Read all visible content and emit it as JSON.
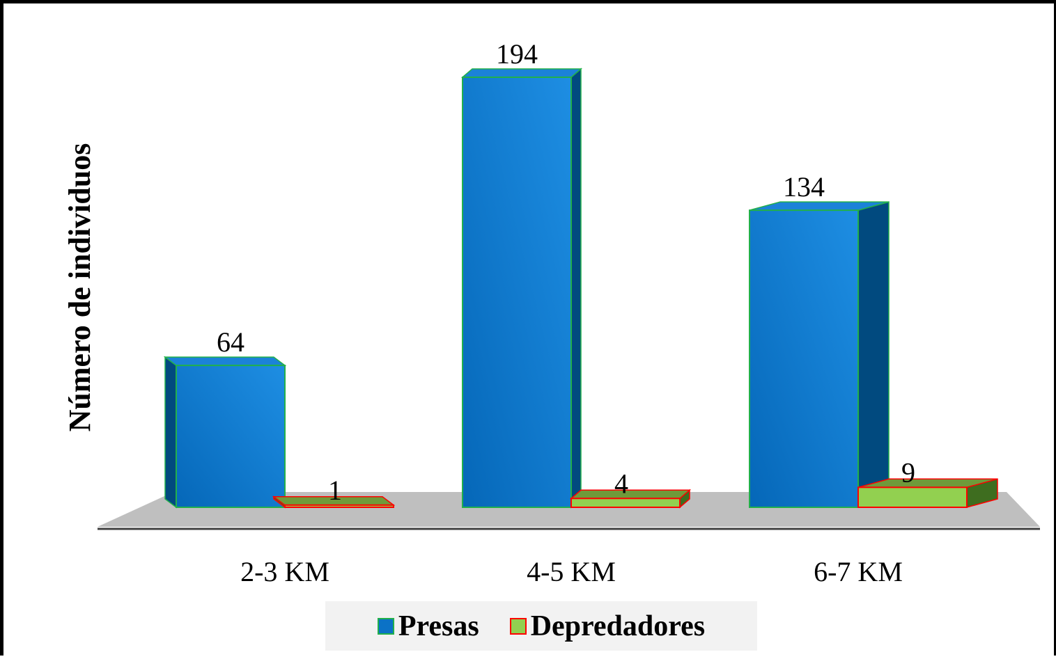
{
  "chart_data": {
    "type": "bar",
    "title": "",
    "xlabel": "",
    "ylabel": "Número de individuos",
    "categories": [
      "2-3 KM",
      "4-5 KM",
      "6-7 KM"
    ],
    "series": [
      {
        "name": "Presas",
        "values": [
          64,
          194,
          134
        ],
        "color": "#0b72c6",
        "edge": "#22b04b"
      },
      {
        "name": "Depredadores",
        "values": [
          1,
          4,
          9
        ],
        "color": "#92d050",
        "edge": "#ff0000"
      }
    ],
    "data_labels": [
      "64",
      "1",
      "194",
      "4",
      "134",
      "9"
    ],
    "ylim": [
      0,
      194
    ],
    "grid": false,
    "legend_position": "bottom",
    "style": "3d-clustered-column",
    "floor_color": "#bfbfbf"
  }
}
